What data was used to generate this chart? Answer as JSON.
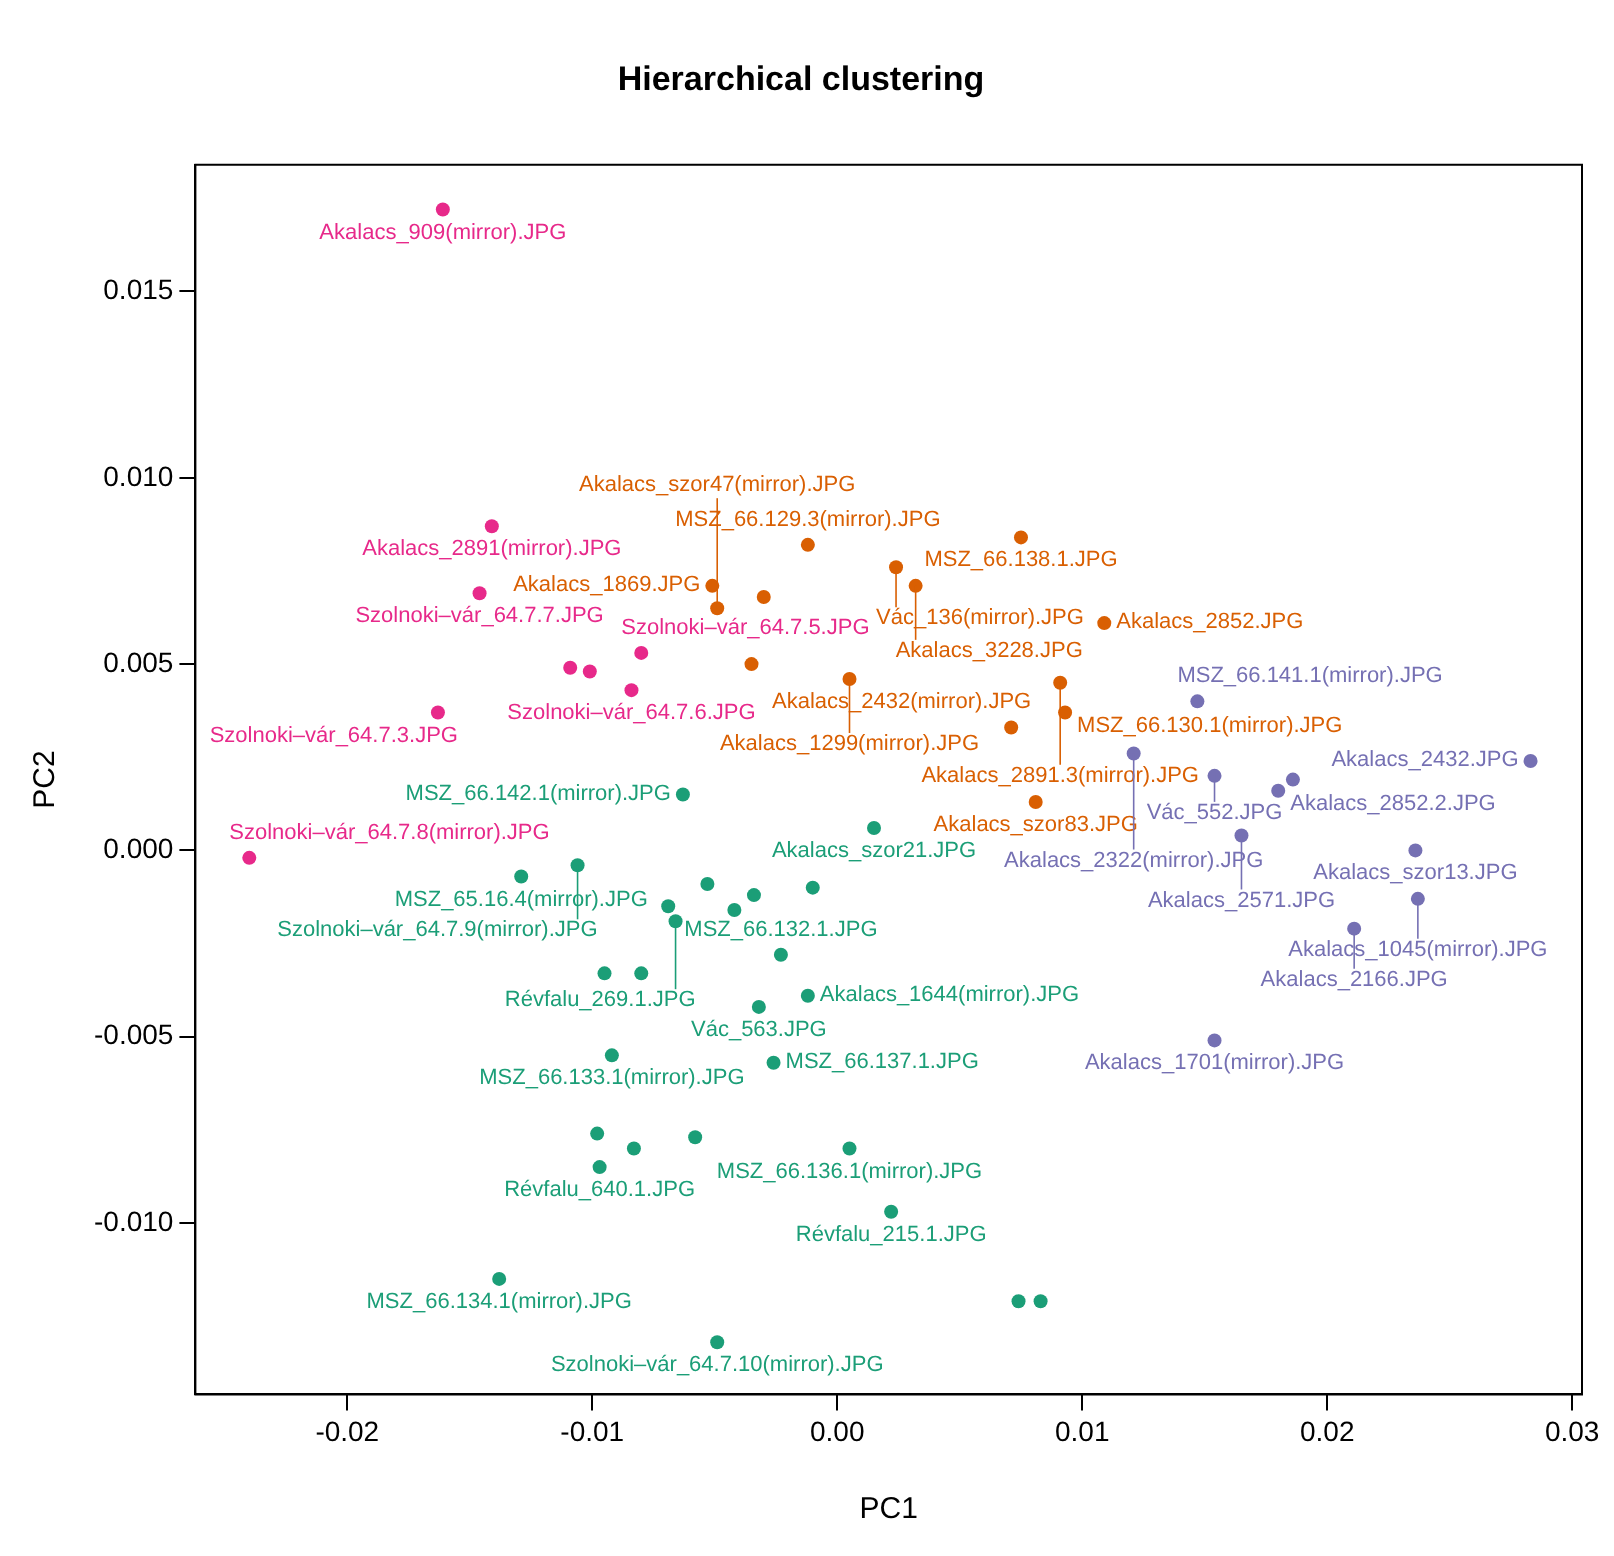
{
  "chart_data": {
    "type": "scatter",
    "title": "Hierarchical clustering",
    "xlabel": "PC1",
    "ylabel": "PC2",
    "marker": "circle",
    "grid": false,
    "xlim": [
      -0.0262,
      0.0304
    ],
    "xticks": [
      {
        "value": -0.02,
        "label": "-0.02"
      },
      {
        "value": -0.01,
        "label": "-0.01"
      },
      {
        "value": 0,
        "label": "0.00"
      },
      {
        "value": 0.01,
        "label": "0.01"
      },
      {
        "value": 0.02,
        "label": "0.02"
      },
      {
        "value": 0.03,
        "label": "0.03"
      }
    ],
    "ylim": [
      -0.0146,
      0.0184
    ],
    "yticks": [
      {
        "value": -0.01,
        "label": "-0.010"
      },
      {
        "value": -0.005,
        "label": "-0.005"
      },
      {
        "value": 0,
        "label": "0.000"
      },
      {
        "value": 0.005,
        "label": "0.005"
      },
      {
        "value": 0.01,
        "label": "0.010"
      },
      {
        "value": 0.015,
        "label": "0.015"
      }
    ],
    "series": [
      {
        "color": "#e7298a",
        "x": [
          -0.0161,
          -0.0141,
          -0.0146,
          -0.008,
          -0.0109,
          -0.0101,
          -0.0084,
          -0.0163,
          -0.024
        ],
        "values": [
          0.0172,
          0.0087,
          0.0069,
          0.0053,
          0.0049,
          0.0048,
          0.0043,
          0.0037,
          -0.0002
        ]
      },
      {
        "color": "#d95f02",
        "x": [
          -0.0012,
          0.0075,
          -0.0051,
          0.0024,
          0.0032,
          -0.003,
          -0.0049,
          0.0109,
          -0.0035,
          0.0005,
          0.0091,
          0.0093,
          0.0071,
          0.0081
        ],
        "values": [
          0.0082,
          0.0084,
          0.0071,
          0.0076,
          0.0071,
          0.0068,
          0.0065,
          0.0061,
          0.005,
          0.0046,
          0.0045,
          0.0037,
          0.0033,
          0.0013
        ]
      },
      {
        "color": "#7570b3",
        "x": [
          0.0147,
          0.0121,
          0.0154,
          0.0186,
          0.018,
          0.0165,
          0.0283,
          0.0236,
          0.0237,
          0.0211,
          0.0154
        ],
        "values": [
          0.004,
          0.0026,
          0.002,
          0.0019,
          0.0016,
          0.0004,
          0.0024,
          0.0,
          -0.0013,
          -0.0021,
          -0.0051
        ]
      },
      {
        "color": "#1b9e77",
        "x": [
          -0.0063,
          0.0015,
          -0.0129,
          -0.0106,
          -0.0053,
          -0.0034,
          -0.001,
          -0.0069,
          -0.0042,
          -0.0066,
          -0.0023,
          -0.0095,
          -0.008,
          -0.0012,
          -0.0032,
          -0.0092,
          -0.0026,
          -0.0098,
          -0.0058,
          -0.0083,
          -0.0097,
          0.0005,
          0.0022,
          -0.0138,
          -0.0049,
          0.0074,
          0.0083
        ],
        "values": [
          0.0015,
          0.0006,
          -0.0007,
          -0.0004,
          -0.0009,
          -0.0012,
          -0.001,
          -0.0015,
          -0.0016,
          -0.0019,
          -0.0028,
          -0.0033,
          -0.0033,
          -0.0039,
          -0.0042,
          -0.0055,
          -0.0057,
          -0.0076,
          -0.0077,
          -0.008,
          -0.0085,
          -0.008,
          -0.0097,
          -0.0115,
          -0.0132,
          -0.0121,
          -0.0121
        ]
      }
    ],
    "annotations": [
      {
        "text": "Akalacs_909(mirror).JPG",
        "x": -0.0161,
        "y": 0.0172
      },
      {
        "text": "Akalacs_2891(mirror).JPG",
        "x": -0.0141,
        "y": 0.0087
      },
      {
        "text": "Szolnoki–vár_64.7.7.JPG",
        "x": -0.0146,
        "y": 0.0069
      },
      {
        "text": "Szolnoki–vár_64.7.5.JPG",
        "x": -0.008,
        "y": 0.0053
      },
      {
        "text": "Szolnoki–vár_64.7.6.JPG",
        "x": -0.0084,
        "y": 0.0043
      },
      {
        "text": "Szolnoki–vár_64.7.3.JPG",
        "x": -0.0163,
        "y": 0.0037
      },
      {
        "text": "Szolnoki–vár_64.7.8(mirror).JPG",
        "x": -0.024,
        "y": -0.0002
      },
      {
        "text": "MSZ_66.129.3(mirror).JPG",
        "x": -0.0012,
        "y": 0.0082
      },
      {
        "text": "MSZ_66.138.1.JPG",
        "x": 0.0075,
        "y": 0.0084
      },
      {
        "text": "Akalacs_1869.JPG",
        "x": -0.0051,
        "y": 0.0071
      },
      {
        "text": "Vác_136(mirror).JPG",
        "x": 0.0024,
        "y": 0.0076
      },
      {
        "text": "Akalacs_3228.JPG",
        "x": 0.0032,
        "y": 0.0071
      },
      {
        "text": "Akalacs_szor47(mirror).JPG",
        "x": -0.0049,
        "y": 0.0065
      },
      {
        "text": "Akalacs_2852.JPG",
        "x": 0.0109,
        "y": 0.0061
      },
      {
        "text": "Akalacs_1299(mirror).JPG",
        "x": 0.0005,
        "y": 0.0046
      },
      {
        "text": "Akalacs_2891.3(mirror).JPG",
        "x": 0.0091,
        "y": 0.0045
      },
      {
        "text": "MSZ_66.130.1(mirror).JPG",
        "x": 0.0093,
        "y": 0.0037
      },
      {
        "text": "Akalacs_2432(mirror).JPG",
        "x": 0.0071,
        "y": 0.0033
      },
      {
        "text": "Akalacs_szor83.JPG",
        "x": 0.0081,
        "y": 0.0013
      },
      {
        "text": "MSZ_66.141.1(mirror).JPG",
        "x": 0.0147,
        "y": 0.004
      },
      {
        "text": "Akalacs_2322(mirror).JPG",
        "x": 0.0121,
        "y": 0.0026
      },
      {
        "text": "Vác_552.JPG",
        "x": 0.0154,
        "y": 0.002
      },
      {
        "text": "Akalacs_2852.2.JPG",
        "x": 0.018,
        "y": 0.0016
      },
      {
        "text": "Akalacs_2571.JPG",
        "x": 0.0165,
        "y": 0.0004
      },
      {
        "text": "Akalacs_2432.JPG",
        "x": 0.0283,
        "y": 0.0024
      },
      {
        "text": "Akalacs_szor13.JPG",
        "x": 0.0236,
        "y": 0.0
      },
      {
        "text": "Akalacs_1045(mirror).JPG",
        "x": 0.0237,
        "y": -0.0013
      },
      {
        "text": "Akalacs_2166.JPG",
        "x": 0.0211,
        "y": -0.0021
      },
      {
        "text": "Akalacs_1701(mirror).JPG",
        "x": 0.0154,
        "y": -0.0051
      },
      {
        "text": "MSZ_66.142.1(mirror).JPG",
        "x": -0.0063,
        "y": 0.0015
      },
      {
        "text": "Akalacs_szor21.JPG",
        "x": 0.0015,
        "y": 0.0006
      },
      {
        "text": "MSZ_65.16.4(mirror).JPG",
        "x": -0.0129,
        "y": -0.0007
      },
      {
        "text": "Szolnoki–vár_64.7.9(mirror).JPG",
        "x": -0.0106,
        "y": -0.0004
      },
      {
        "text": "Révfalu_269.1.JPG",
        "x": -0.0066,
        "y": -0.0019
      },
      {
        "text": "MSZ_66.132.1.JPG",
        "x": -0.0023,
        "y": -0.0028
      },
      {
        "text": "Akalacs_1644(mirror).JPG",
        "x": -0.0012,
        "y": -0.0039
      },
      {
        "text": "Vác_563.JPG",
        "x": -0.0032,
        "y": -0.0042
      },
      {
        "text": "MSZ_66.133.1(mirror).JPG",
        "x": -0.0092,
        "y": -0.0055
      },
      {
        "text": "MSZ_66.137.1.JPG",
        "x": -0.0026,
        "y": -0.0057
      },
      {
        "text": "Révfalu_640.1.JPG",
        "x": -0.0097,
        "y": -0.0085
      },
      {
        "text": "MSZ_66.136.1(mirror).JPG",
        "x": 0.0005,
        "y": -0.008
      },
      {
        "text": "Révfalu_215.1.JPG",
        "x": 0.0022,
        "y": -0.0097
      },
      {
        "text": "MSZ_66.134.1(mirror).JPG",
        "x": -0.0138,
        "y": -0.0115
      },
      {
        "text": "Szolnoki–vár_64.7.10(mirror).JPG",
        "x": -0.0049,
        "y": -0.0132
      }
    ]
  }
}
